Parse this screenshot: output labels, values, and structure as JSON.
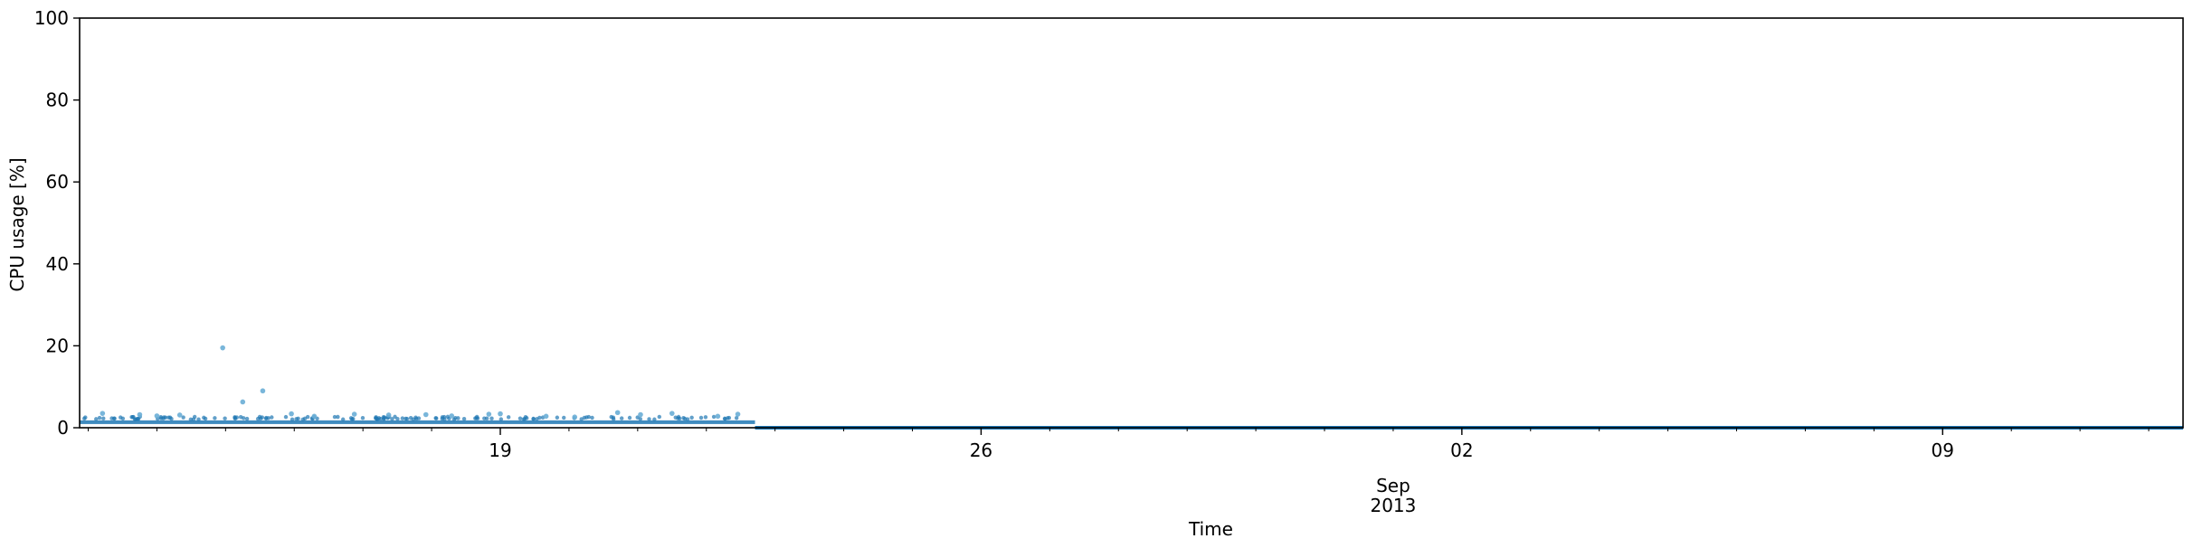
{
  "chart_data": {
    "type": "scatter",
    "xlabel": "Time",
    "ylabel": "CPU usage [%]",
    "x_range": [
      "2013-08-12T21:00",
      "2013-09-12T12:00"
    ],
    "ylim": [
      0,
      100
    ],
    "yticks": [
      0,
      20,
      40,
      60,
      80,
      100
    ],
    "xticks": [
      {
        "date": "2013-08-19",
        "label": "19"
      },
      {
        "date": "2013-08-26",
        "label": "26"
      },
      {
        "date": "2013-09-02",
        "label": "02"
      },
      {
        "date": "2013-09-09",
        "label": "09"
      }
    ],
    "x_month_label": "Sep",
    "x_year_label": "2013",
    "grid": false,
    "colors": {
      "points": "#1f77b4",
      "spikes": "#6aaed6"
    },
    "band": {
      "x_start": "2013-08-12T21:00",
      "x_end": "2013-08-22T17:00",
      "y_min": 0.9,
      "y_max": 1.8
    },
    "zero_series": {
      "x_start": "2013-08-22T17:00",
      "x_end": "2013-09-12T12:00",
      "y": 0
    },
    "outliers": [
      {
        "x": "2013-08-14T23:00",
        "y": 19.5
      },
      {
        "x": "2013-08-15T06:00",
        "y": 6.3
      },
      {
        "x": "2013-08-15T13:00",
        "y": 9.0
      },
      {
        "x": "2013-08-13T05:00",
        "y": 3.5
      },
      {
        "x": "2013-08-13T18:00",
        "y": 3.2
      },
      {
        "x": "2013-08-14T00:00",
        "y": 2.9
      },
      {
        "x": "2013-08-14T08:00",
        "y": 3.1
      },
      {
        "x": "2013-08-15T23:00",
        "y": 3.4
      },
      {
        "x": "2013-08-16T07:00",
        "y": 2.8
      },
      {
        "x": "2013-08-16T21:00",
        "y": 3.3
      },
      {
        "x": "2013-08-17T09:00",
        "y": 3.1
      },
      {
        "x": "2013-08-17T22:00",
        "y": 3.2
      },
      {
        "x": "2013-08-18T07:00",
        "y": 2.9
      },
      {
        "x": "2013-08-18T20:00",
        "y": 3.3
      },
      {
        "x": "2013-08-19T00:00",
        "y": 3.4
      },
      {
        "x": "2013-08-19T16:00",
        "y": 2.8
      },
      {
        "x": "2013-08-20T02:00",
        "y": 2.6
      },
      {
        "x": "2013-08-20T17:00",
        "y": 3.7
      },
      {
        "x": "2013-08-21T01:00",
        "y": 3.2
      },
      {
        "x": "2013-08-21T12:00",
        "y": 3.5
      },
      {
        "x": "2013-08-22T04:00",
        "y": 2.8
      },
      {
        "x": "2013-08-22T11:00",
        "y": 3.3
      }
    ]
  }
}
